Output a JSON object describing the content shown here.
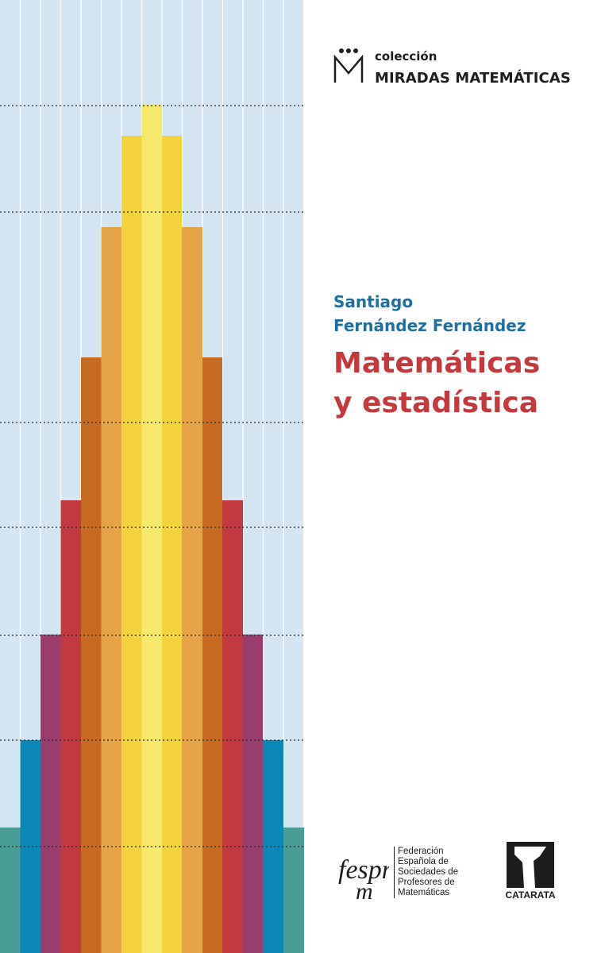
{
  "series": {
    "prefix": "colección",
    "name": "MIRADAS MATEMÁTICAS"
  },
  "author": {
    "first_name": "Santiago",
    "surnames": "Fernández Fernández"
  },
  "title": {
    "line1": "Matemáticas",
    "line2": "y estadística"
  },
  "federation": {
    "logo_letters": "fespm",
    "lines": [
      "Federación",
      "Española de",
      "Sociedades de",
      "Profesores de",
      "Matemáticas"
    ]
  },
  "publisher": {
    "name": "CATARATA"
  },
  "colors": {
    "background_art": "#d3e5f3",
    "author": "#1e6f9f",
    "title": "#c5393c",
    "bar_colors": [
      "#4a9d96",
      "#0b87b8",
      "#983d6d",
      "#c2393f",
      "#c76a22",
      "#e6a449",
      "#f4d23c",
      "#f6e86a"
    ]
  }
}
